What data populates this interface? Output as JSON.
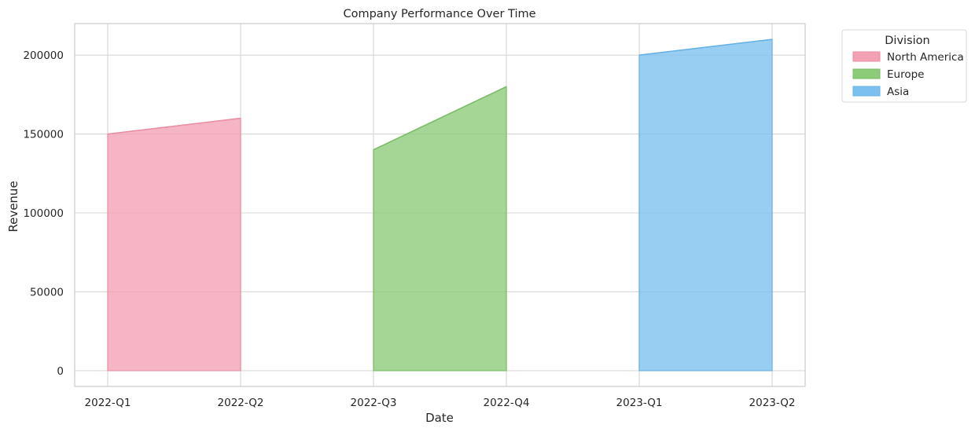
{
  "chart_data": {
    "type": "area",
    "title": "Company Performance Over Time",
    "xlabel": "Date",
    "ylabel": "Revenue",
    "categories": [
      "2022-Q1",
      "2022-Q2",
      "2022-Q3",
      "2022-Q4",
      "2023-Q1",
      "2023-Q2"
    ],
    "ylim": [
      -10000,
      220000
    ],
    "yticks": [
      0,
      50000,
      100000,
      150000,
      200000
    ],
    "grid": true,
    "legend": {
      "title": "Division",
      "placement": "outside-top-right"
    },
    "series": [
      {
        "name": "North America",
        "color": "#f4a0b3",
        "edge_color": "#e98ea2",
        "points": [
          {
            "x": "2022-Q1",
            "y": 150000
          },
          {
            "x": "2022-Q2",
            "y": 160000
          }
        ]
      },
      {
        "name": "Europe",
        "color": "#8ccb78",
        "edge_color": "#78bd64",
        "points": [
          {
            "x": "2022-Q3",
            "y": 140000
          },
          {
            "x": "2022-Q4",
            "y": 180000
          }
        ]
      },
      {
        "name": "Asia",
        "color": "#7cc0ef",
        "edge_color": "#66b1e4",
        "points": [
          {
            "x": "2023-Q1",
            "y": 200000
          },
          {
            "x": "2023-Q2",
            "y": 210000
          }
        ]
      }
    ]
  }
}
